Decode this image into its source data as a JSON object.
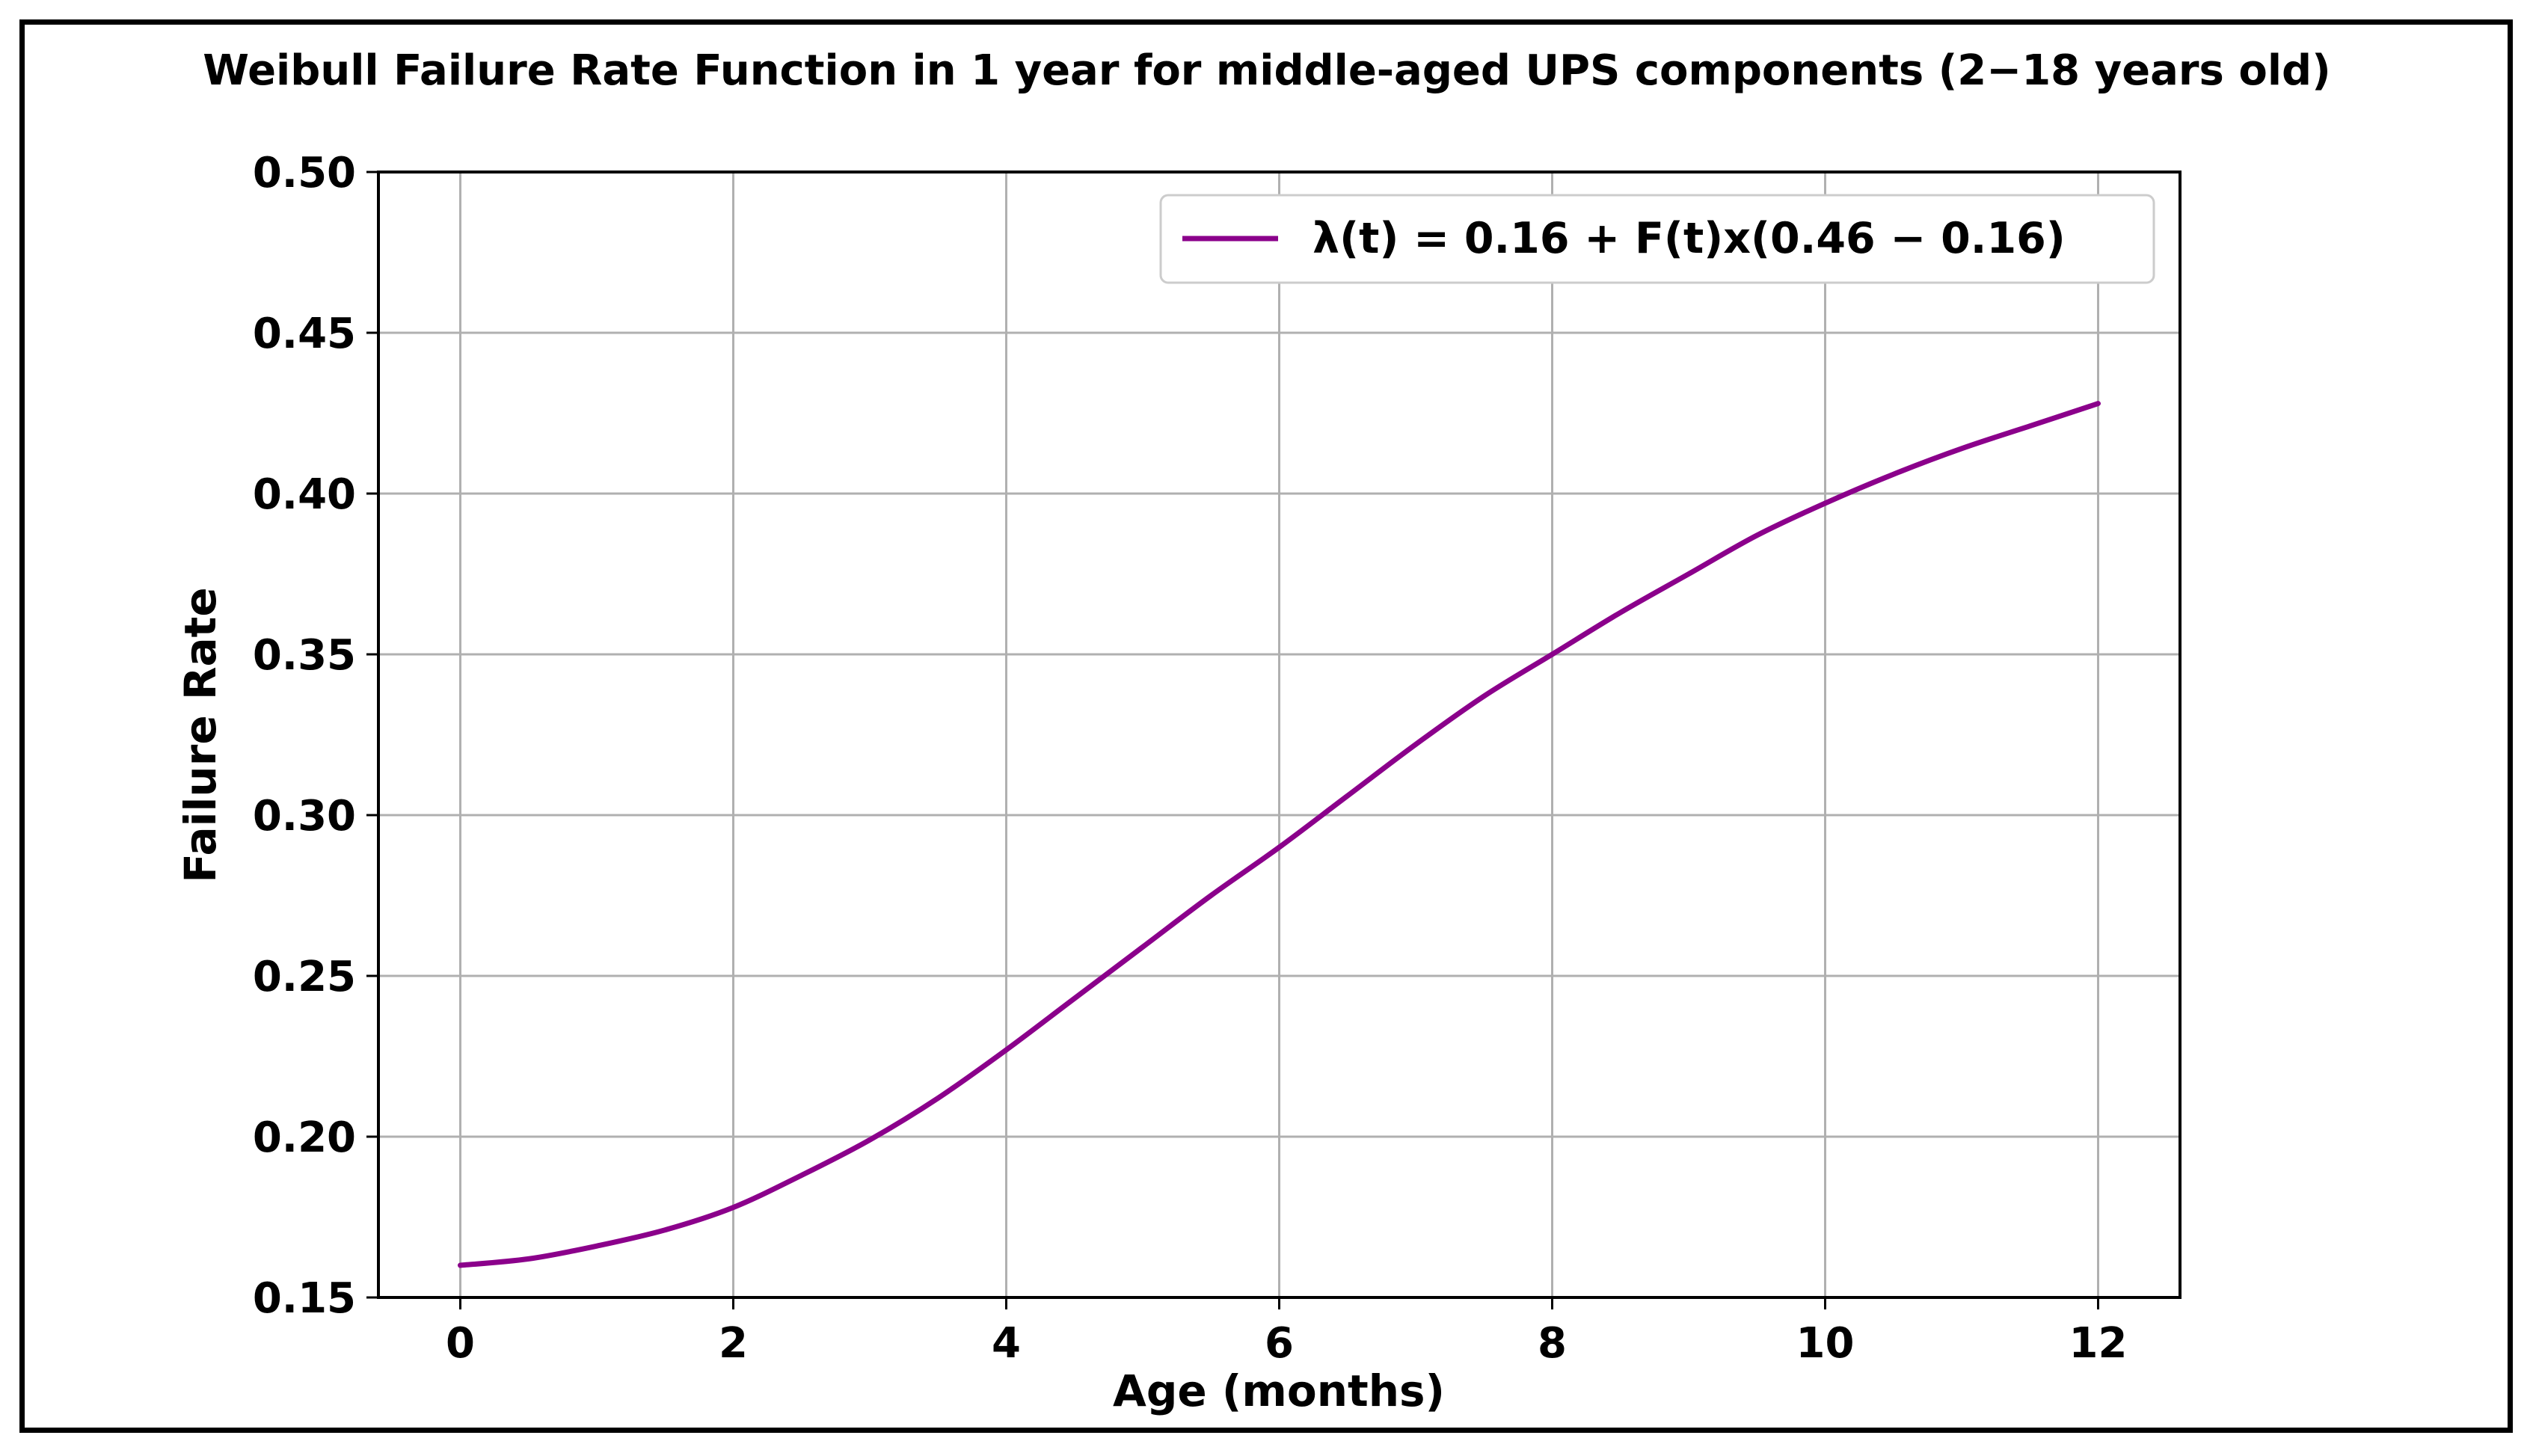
{
  "chart_data": {
    "type": "line",
    "title": "Weibull Failure Rate Function in 1 year for middle-aged UPS components (2−18 years old)",
    "xlabel": "Age (months)",
    "ylabel": "Failure Rate",
    "xlim": [
      -0.6,
      12.6
    ],
    "ylim": [
      0.15,
      0.5
    ],
    "xticks": [
      0,
      2,
      4,
      6,
      8,
      10,
      12
    ],
    "xtick_labels": [
      "0",
      "2",
      "4",
      "6",
      "8",
      "10",
      "12"
    ],
    "yticks": [
      0.15,
      0.2,
      0.25,
      0.3,
      0.35,
      0.4,
      0.45,
      0.5
    ],
    "ytick_labels": [
      "0.15",
      "0.20",
      "0.25",
      "0.30",
      "0.35",
      "0.40",
      "0.45",
      "0.50"
    ],
    "grid": true,
    "legend_position": "top-right",
    "x": [
      0,
      0.5,
      1,
      1.5,
      2,
      2.5,
      3,
      3.5,
      4,
      4.5,
      5,
      5.5,
      6,
      6.5,
      7,
      7.5,
      8,
      8.5,
      9,
      9.5,
      10,
      10.5,
      11,
      11.5,
      12
    ],
    "series": [
      {
        "name": "λ(t) = 0.16 + F(t)x(0.46 − 0.16)",
        "color": "#8b008b",
        "values": [
          0.16,
          0.162,
          0.166,
          0.171,
          0.178,
          0.188,
          0.199,
          0.212,
          0.227,
          0.243,
          0.259,
          0.275,
          0.29,
          0.306,
          0.322,
          0.337,
          0.35,
          0.363,
          0.375,
          0.387,
          0.397,
          0.406,
          0.414,
          0.421,
          0.428
        ]
      }
    ]
  }
}
